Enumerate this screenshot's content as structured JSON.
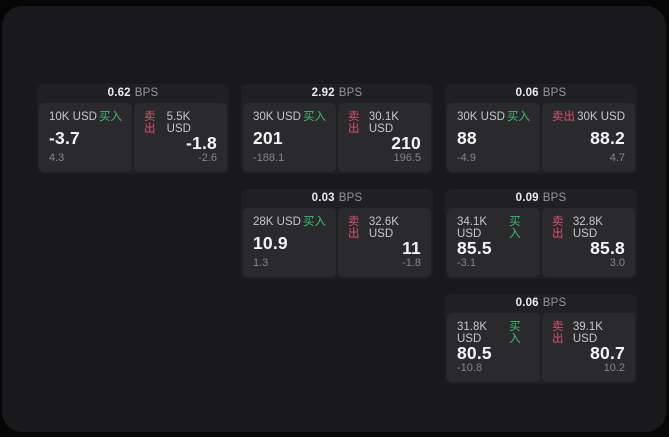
{
  "labels": {
    "bps_suffix": "BPS",
    "buy": "买入",
    "sell": "卖出"
  },
  "colors": {
    "background": "#060606",
    "panel": "#19191b",
    "card": "#202023",
    "tile": "#2a2a2d",
    "buy_green": "#3fbe73",
    "sell_red": "#d8516e",
    "price_text": "#f4f4f6",
    "label_text": "#c7c7ca",
    "muted_text": "#85858a",
    "bps_value_text": "#ececef",
    "bps_unit_text": "#95959a"
  },
  "cards": [
    {
      "bps": "0.62",
      "buy": {
        "size": "10K USD",
        "price": "-3.7",
        "change": "4.3"
      },
      "sell": {
        "size": "5.5K USD",
        "price": "-1.8",
        "change": "-2.6"
      }
    },
    {
      "bps": "2.92",
      "buy": {
        "size": "30K USD",
        "price": "201",
        "change": "-188.1"
      },
      "sell": {
        "size": "30.1K USD",
        "price": "210",
        "change": "196.5"
      }
    },
    {
      "bps": "0.06",
      "buy": {
        "size": "30K USD",
        "price": "88",
        "change": "-4.9"
      },
      "sell": {
        "size": "30K USD",
        "price": "88.2",
        "change": "4.7"
      }
    },
    {
      "bps": "0.03",
      "buy": {
        "size": "28K USD",
        "price": "10.9",
        "change": "1.3"
      },
      "sell": {
        "size": "32.6K USD",
        "price": "11",
        "change": "-1.8"
      }
    },
    {
      "bps": "0.09",
      "buy": {
        "size": "34.1K USD",
        "price": "85.5",
        "change": "-3.1"
      },
      "sell": {
        "size": "32.8K USD",
        "price": "85.8",
        "change": "3.0"
      }
    },
    {
      "bps": "0.06",
      "buy": {
        "size": "31.8K USD",
        "price": "80.5",
        "change": "-10.8"
      },
      "sell": {
        "size": "39.1K USD",
        "price": "80.7",
        "change": "10.2"
      }
    }
  ]
}
